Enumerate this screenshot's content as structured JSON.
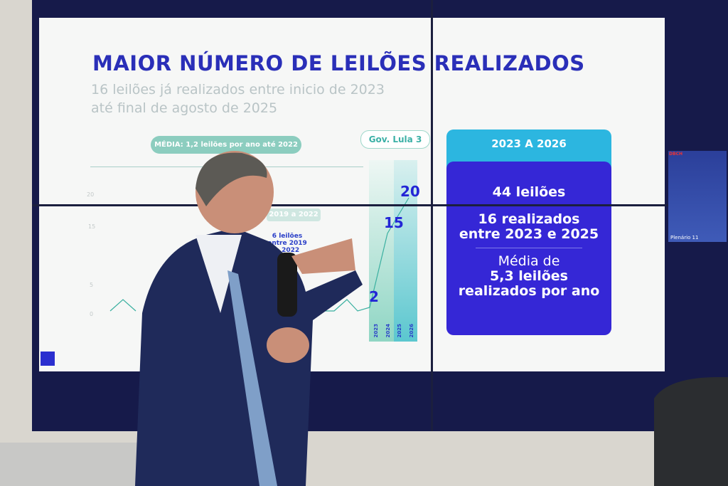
{
  "slide": {
    "title": "MAIOR NÚMERO DE LEILÕES REALIZADOS",
    "subtitle_line1": "16 leilões já realizados entre inicio de 2023",
    "subtitle_line2": "até final de agosto de 2025",
    "media_pill": "MÉDIA: 1,2 leilões por ano até 2022",
    "gov_pill": "Gov. Lula 3",
    "period_label": "2019 a 2022",
    "period_text": "6 leilões entre 2019 a 2022",
    "y_ticks": [
      "20",
      "15",
      "5",
      "0"
    ],
    "values": {
      "v2023": "2",
      "v2024": "15",
      "v2025": "20"
    },
    "x_years": [
      "2023",
      "2024",
      "2025",
      "2026"
    ],
    "box": {
      "header": "2023 A 2026",
      "total": "44 leilões",
      "done_line1": "16 realizados",
      "done_line2": "entre 2023 e 2025",
      "avg_line1": "Média de",
      "avg_line2": "5,3 leilões",
      "avg_line3": "realizados por ano"
    },
    "colors": {
      "title": "#2a2fb8",
      "box": "#3527d6",
      "box_header": "#2cb6e0",
      "accent_green": "#8ccdbf"
    }
  },
  "video_inset": {
    "label": "Plenário 11",
    "rec": "DBCH"
  }
}
